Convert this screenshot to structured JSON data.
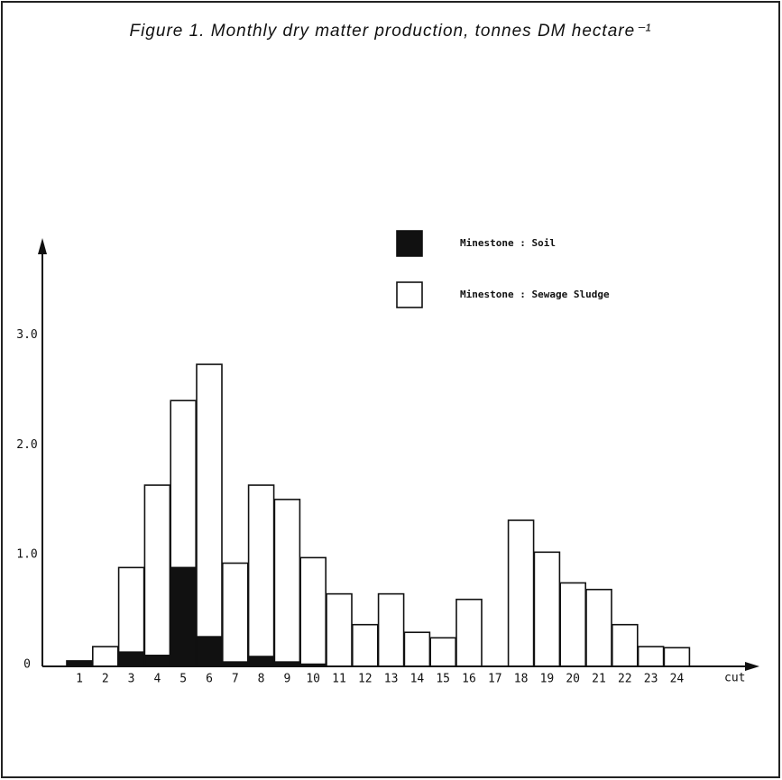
{
  "chart_data": {
    "type": "bar",
    "title": "Figure 1. Monthly dry matter production, tonnes DM hectare⁻¹",
    "x_label": "cut",
    "categories": [
      "1",
      "2",
      "3",
      "4",
      "5",
      "6",
      "7",
      "8",
      "9",
      "10",
      "11",
      "12",
      "13",
      "14",
      "15",
      "16",
      "17",
      "18",
      "19",
      "20",
      "21",
      "22",
      "23",
      "24"
    ],
    "series": [
      {
        "name": "Minestone : Sewage Sludge",
        "color": "#ffffff",
        "values": [
          0,
          0.18,
          0.9,
          1.65,
          2.42,
          2.75,
          0.94,
          1.65,
          1.52,
          0.99,
          0.66,
          0.38,
          0.66,
          0.31,
          0.26,
          0.61,
          0,
          1.33,
          1.04,
          0.76,
          0.7,
          0.38,
          0.18,
          0.17
        ]
      },
      {
        "name": "Minestone : Soil",
        "color": "#111111",
        "values": [
          0.05,
          0,
          0.13,
          0.1,
          0.9,
          0.27,
          0.04,
          0.09,
          0.04,
          0.02,
          0,
          0,
          0,
          0,
          0,
          0,
          0,
          0,
          0,
          0,
          0,
          0,
          0,
          0
        ]
      }
    ],
    "ylim": [
      0,
      3.9
    ],
    "yticks": [
      0,
      {
        "value": 1,
        "label": "1.0"
      },
      {
        "value": 2,
        "label": "2.0"
      },
      {
        "value": 3,
        "label": "3.0"
      }
    ],
    "grid": false
  }
}
